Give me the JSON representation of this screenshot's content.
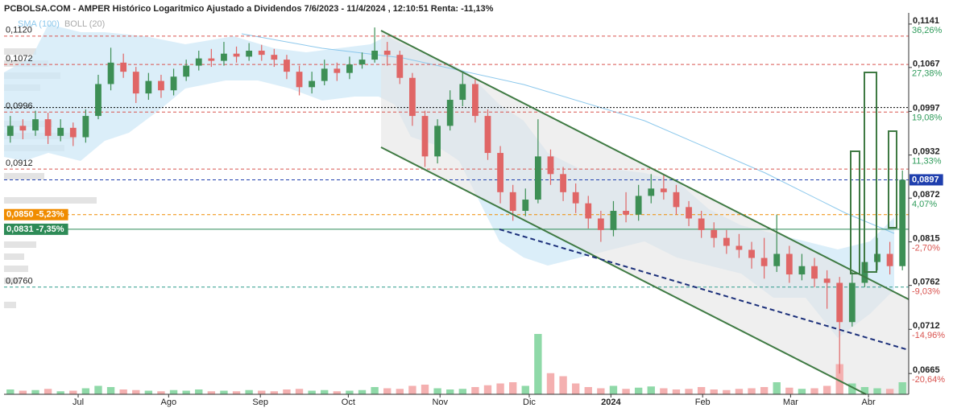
{
  "chart_data": {
    "type": "candlestick",
    "title": "PCBOLSA.COM - AMPER Histórico Logaritmico Ajustado a Dividendos 7/6/2023 - 11/4/2024 , 12:10:51 Renta: -11,13%",
    "legend": [
      {
        "name": "SMA (100)",
        "color": "#8cc8ec"
      },
      {
        "name": "BOLL (20)",
        "color": "#aaaaaa"
      }
    ],
    "log_scale": true,
    "ylim": [
      0.0644,
      0.1158
    ],
    "yticks": [
      {
        "value": 0.1141,
        "label": "0,1141"
      },
      {
        "value": 0.1067,
        "label": "0,1067"
      },
      {
        "value": 0.0997,
        "label": "0,0997"
      },
      {
        "value": 0.0932,
        "label": "0,0932"
      },
      {
        "value": 0.0872,
        "label": "0,0872"
      },
      {
        "value": 0.0815,
        "label": "0,0815"
      },
      {
        "value": 0.0762,
        "label": "0,0762"
      },
      {
        "value": 0.0712,
        "label": "0,0712"
      },
      {
        "value": 0.0665,
        "label": "0,0665"
      }
    ],
    "ytick_changes": [
      {
        "value": 36.26,
        "label": "36,26%"
      },
      {
        "value": 27.38,
        "label": "27,38%"
      },
      {
        "value": 19.08,
        "label": "19,08%"
      },
      {
        "value": 11.33,
        "label": "11,33%"
      },
      {
        "value": 4.07,
        "label": "4,07%"
      },
      {
        "value": -2.7,
        "label": "-2,70%"
      },
      {
        "value": -9.03,
        "label": "-9,03%"
      },
      {
        "value": -14.96,
        "label": "-14,96%"
      },
      {
        "value": -20.64,
        "label": "-20,64%"
      }
    ],
    "xticks": [
      {
        "value": 5.4,
        "label": "Jul"
      },
      {
        "value": 12.6,
        "label": "Ago"
      },
      {
        "value": 19.9,
        "label": "Sep"
      },
      {
        "value": 26.9,
        "label": "Oct"
      },
      {
        "value": 34.2,
        "label": "Nov"
      },
      {
        "value": 41.3,
        "label": "Dic"
      },
      {
        "value": 47.8,
        "label": "2024"
      },
      {
        "value": 55.1,
        "label": "Feb"
      },
      {
        "value": 62.1,
        "label": "Mar"
      },
      {
        "value": 68.3,
        "label": "Abr"
      }
    ],
    "levels": [
      {
        "value": 0.112,
        "label": "0,1120",
        "color": "#d9534f",
        "style": "dashed"
      },
      {
        "value": 0.1072,
        "label": "0,1072",
        "color": "#d9534f",
        "style": "dashed"
      },
      {
        "value": 0.1003,
        "color": "#000000",
        "style": "dotted"
      },
      {
        "value": 0.0996,
        "label": "0,0996",
        "color": "#d9534f",
        "style": "dashed"
      },
      {
        "value": 0.0912,
        "label": "0,0912",
        "color": "#d9534f",
        "style": "dashed"
      },
      {
        "value": 0.0897,
        "label": "0,0897",
        "color": "#1f3fae",
        "style": "dashed",
        "box": "right"
      },
      {
        "value": 0.085,
        "label": "0,0850 -5,23%",
        "color": "#f08c00",
        "style": "dashed",
        "box": "left"
      },
      {
        "value": 0.0831,
        "label": "0,0831 -7,35%",
        "color": "#2e8b57",
        "style": "solid",
        "box": "left"
      },
      {
        "value": 0.076,
        "label": "0,0760",
        "color": "#2e9b8b",
        "style": "dashed"
      }
    ],
    "up_color": "#3d8f55",
    "down_color": "#e06666",
    "volume_colors": [
      "#8fd9a8",
      "#f4b0b0"
    ],
    "volume_ylim": [
      0,
      100
    ],
    "open": [
      0.096,
      0.0975,
      0.0968,
      0.0985,
      0.096,
      0.0972,
      0.0958,
      0.099,
      0.104,
      0.1075,
      0.106,
      0.1025,
      0.1045,
      0.103,
      0.1052,
      0.107,
      0.1082,
      0.1078,
      0.109,
      0.1085,
      0.1095,
      0.1088,
      0.108,
      0.106,
      0.1035,
      0.1045,
      0.1065,
      0.1058,
      0.1072,
      0.108,
      0.1095,
      0.1088,
      0.105,
      0.099,
      0.093,
      0.0975,
      0.1015,
      0.104,
      0.099,
      0.0935,
      0.088,
      0.0855,
      0.087,
      0.093,
      0.0905,
      0.088,
      0.0865,
      0.0845,
      0.083,
      0.0855,
      0.085,
      0.0875,
      0.0885,
      0.088,
      0.086,
      0.0845,
      0.083,
      0.082,
      0.081,
      0.0805,
      0.0795,
      0.0785,
      0.08,
      0.0775,
      0.0785,
      0.077,
      0.0765,
      0.072,
      0.0765,
      0.079,
      0.08,
      0.0785
    ],
    "high": [
      0.099,
      0.0985,
      0.0998,
      0.0995,
      0.0985,
      0.098,
      0.1,
      0.1055,
      0.11,
      0.109,
      0.1068,
      0.1058,
      0.1055,
      0.1065,
      0.108,
      0.1095,
      0.1098,
      0.111,
      0.1102,
      0.1108,
      0.1105,
      0.1098,
      0.1088,
      0.107,
      0.106,
      0.108,
      0.1075,
      0.1085,
      0.1092,
      0.1135,
      0.111,
      0.1095,
      0.1058,
      0.0998,
      0.0985,
      0.103,
      0.106,
      0.1048,
      0.1,
      0.0945,
      0.089,
      0.0885,
      0.0985,
      0.094,
      0.0915,
      0.0892,
      0.0875,
      0.0855,
      0.0868,
      0.088,
      0.089,
      0.0905,
      0.0905,
      0.089,
      0.0868,
      0.0855,
      0.084,
      0.083,
      0.0825,
      0.0815,
      0.082,
      0.085,
      0.081,
      0.08,
      0.0795,
      0.078,
      0.0772,
      0.0778,
      0.0805,
      0.082,
      0.0815,
      0.091
    ],
    "low": [
      0.095,
      0.0955,
      0.096,
      0.0948,
      0.0952,
      0.0945,
      0.095,
      0.0985,
      0.103,
      0.105,
      0.101,
      0.1015,
      0.1018,
      0.1022,
      0.1045,
      0.1062,
      0.1068,
      0.107,
      0.1075,
      0.1078,
      0.1078,
      0.1068,
      0.1048,
      0.1022,
      0.1025,
      0.1038,
      0.1045,
      0.1048,
      0.1065,
      0.1075,
      0.107,
      0.104,
      0.0975,
      0.0915,
      0.092,
      0.0968,
      0.1005,
      0.098,
      0.0925,
      0.0865,
      0.0842,
      0.0848,
      0.0865,
      0.089,
      0.0868,
      0.0852,
      0.0832,
      0.0815,
      0.0822,
      0.084,
      0.0842,
      0.0865,
      0.087,
      0.085,
      0.0835,
      0.082,
      0.0808,
      0.08,
      0.0795,
      0.0782,
      0.077,
      0.0778,
      0.0765,
      0.0768,
      0.076,
      0.0735,
      0.0665,
      0.0715,
      0.076,
      0.078,
      0.0775,
      0.078
    ],
    "close": [
      0.0975,
      0.0968,
      0.0985,
      0.096,
      0.0972,
      0.0958,
      0.099,
      0.104,
      0.1075,
      0.106,
      0.1025,
      0.1045,
      0.103,
      0.1052,
      0.107,
      0.1082,
      0.1078,
      0.109,
      0.1085,
      0.1095,
      0.1088,
      0.108,
      0.106,
      0.1035,
      0.1045,
      0.1065,
      0.1058,
      0.1072,
      0.108,
      0.1095,
      0.1088,
      0.105,
      0.099,
      0.093,
      0.0975,
      0.1015,
      0.104,
      0.099,
      0.0935,
      0.088,
      0.0855,
      0.087,
      0.093,
      0.0905,
      0.088,
      0.0865,
      0.0845,
      0.083,
      0.0855,
      0.085,
      0.0875,
      0.0885,
      0.088,
      0.086,
      0.0845,
      0.083,
      0.082,
      0.081,
      0.0805,
      0.0795,
      0.0785,
      0.08,
      0.0775,
      0.0785,
      0.077,
      0.0765,
      0.072,
      0.0765,
      0.079,
      0.08,
      0.0785,
      0.0897
    ],
    "volume": [
      8,
      6,
      7,
      9,
      5,
      6,
      10,
      14,
      12,
      8,
      7,
      6,
      5,
      7,
      6,
      8,
      5,
      6,
      5,
      7,
      6,
      5,
      8,
      9,
      6,
      7,
      5,
      6,
      7,
      12,
      10,
      9,
      14,
      16,
      10,
      8,
      9,
      12,
      15,
      18,
      20,
      14,
      100,
      35,
      30,
      18,
      12,
      10,
      14,
      9,
      11,
      13,
      10,
      8,
      9,
      12,
      8,
      7,
      9,
      10,
      12,
      20,
      11,
      9,
      10,
      14,
      50,
      18,
      12,
      10,
      9,
      20
    ]
  }
}
